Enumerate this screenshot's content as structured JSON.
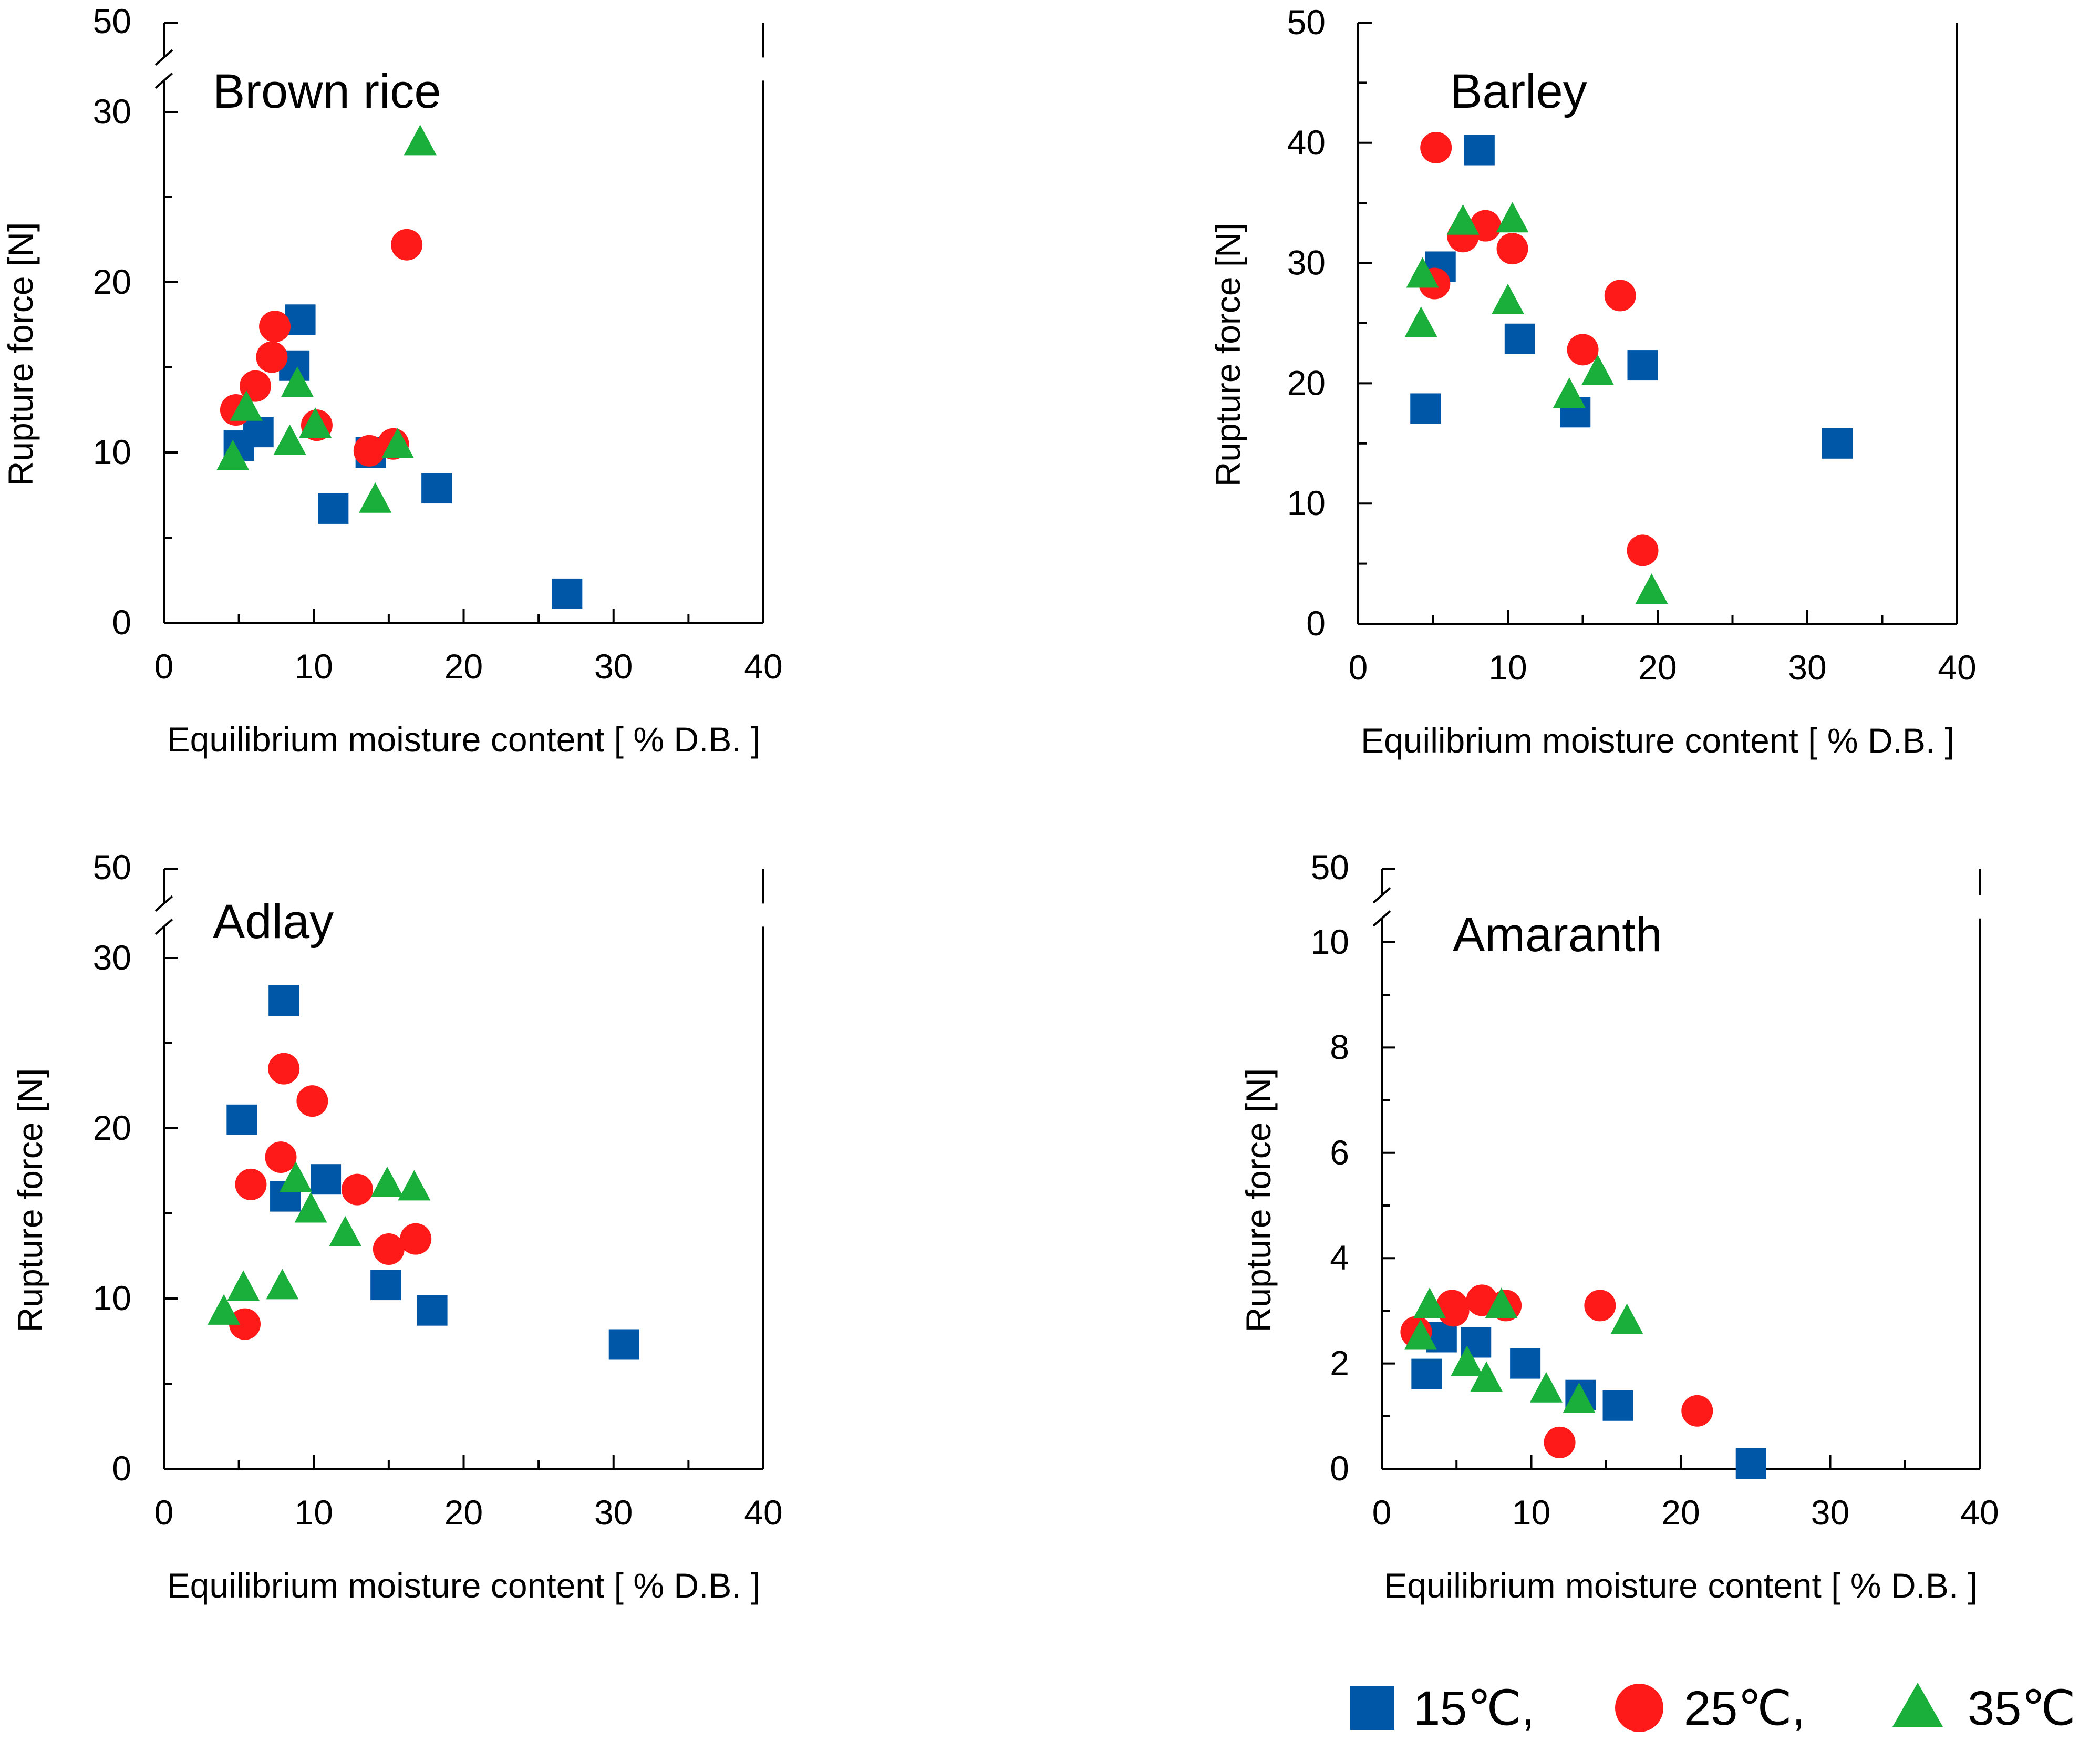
{
  "chart_data": [
    {
      "type": "scatter",
      "title": "Brown rice",
      "xlabel": "Equilibrium moisture content [ % D.B. ]",
      "ylabel": "Rupture force [N]",
      "xlim": [
        0,
        40
      ],
      "ylim": [
        0,
        30
      ],
      "axis_break": {
        "top_label": "50",
        "below": 30
      },
      "xticks": [
        0,
        10,
        20,
        30,
        40
      ],
      "yticks": [
        0,
        10,
        20,
        30
      ],
      "series": [
        {
          "name": "15°C",
          "marker": "square",
          "color": "#0057A8",
          "x": [
            5,
            6.3,
            8.7,
            9.1,
            11.3,
            13.8,
            18.2,
            26.9
          ],
          "y": [
            10.4,
            11.2,
            15.1,
            17.8,
            6.7,
            10.0,
            7.9,
            1.7
          ]
        },
        {
          "name": "25°C",
          "marker": "circle",
          "color": "#FF1A1A",
          "x": [
            4.8,
            6.1,
            7.2,
            7.4,
            10.2,
            13.7,
            15.3,
            16.2
          ],
          "y": [
            12.5,
            13.9,
            15.6,
            17.4,
            11.6,
            10.1,
            10.5,
            22.2
          ]
        },
        {
          "name": "35°C",
          "marker": "triangle",
          "color": "#1AAE3A",
          "x": [
            4.6,
            5.5,
            8.4,
            8.9,
            10.1,
            14.1,
            15.6,
            17.1
          ],
          "y": [
            9.7,
            12.6,
            10.6,
            14.0,
            11.6,
            7.2,
            10.4,
            28.2
          ]
        }
      ]
    },
    {
      "type": "scatter",
      "title": "Barley",
      "xlabel": "Equilibrium moisture content [ % D.B. ]",
      "ylabel": "Rupture force [N]",
      "xlim": [
        0,
        40
      ],
      "ylim": [
        0,
        50
      ],
      "xticks": [
        0,
        10,
        20,
        30,
        40
      ],
      "yticks": [
        0,
        10,
        20,
        30,
        40,
        50
      ],
      "series": [
        {
          "name": "15°C",
          "marker": "square",
          "color": "#0057A8",
          "x": [
            4.5,
            5.5,
            8.1,
            10.8,
            14.5,
            19.0,
            32.0
          ],
          "y": [
            17.9,
            29.7,
            39.4,
            23.7,
            17.6,
            21.5,
            15.0
          ]
        },
        {
          "name": "25°C",
          "marker": "circle",
          "color": "#FF1A1A",
          "x": [
            5.1,
            5.2,
            7.0,
            8.5,
            10.3,
            15.0,
            17.5,
            19.0
          ],
          "y": [
            28.3,
            39.6,
            32.2,
            33.1,
            31.2,
            22.8,
            27.3,
            6.1
          ]
        },
        {
          "name": "35°C",
          "marker": "triangle",
          "color": "#1AAE3A",
          "x": [
            4.2,
            4.3,
            7.0,
            10.0,
            10.3,
            14.1,
            16.0,
            19.6
          ],
          "y": [
            24.9,
            29.0,
            33.4,
            26.8,
            33.6,
            19.0,
            20.9,
            2.7
          ]
        }
      ]
    },
    {
      "type": "scatter",
      "title": "Adlay",
      "xlabel": "Equilibrium moisture content [ % D.B. ]",
      "ylabel": "Rupture force [N]",
      "xlim": [
        0,
        40
      ],
      "ylim": [
        0,
        30
      ],
      "axis_break": {
        "top_label": "50",
        "below": 30
      },
      "xticks": [
        0,
        10,
        20,
        30,
        40
      ],
      "yticks": [
        0,
        10,
        20,
        30
      ],
      "series": [
        {
          "name": "15°C",
          "marker": "square",
          "color": "#0057A8",
          "x": [
            5.2,
            8.0,
            8.1,
            10.8,
            14.8,
            17.9,
            30.7
          ],
          "y": [
            20.5,
            27.5,
            16.0,
            17.0,
            10.8,
            9.3,
            7.3
          ]
        },
        {
          "name": "25°C",
          "marker": "circle",
          "color": "#FF1A1A",
          "x": [
            5.4,
            5.8,
            7.8,
            8.0,
            9.9,
            12.9,
            15.0,
            16.8
          ],
          "y": [
            8.5,
            16.7,
            18.3,
            23.5,
            21.6,
            16.4,
            12.9,
            13.5
          ]
        },
        {
          "name": "35°C",
          "marker": "triangle",
          "color": "#1AAE3A",
          "x": [
            4.0,
            5.3,
            7.9,
            8.8,
            9.8,
            12.1,
            14.9,
            16.7
          ],
          "y": [
            9.2,
            10.6,
            10.7,
            17.0,
            15.2,
            13.8,
            16.7,
            16.5
          ]
        }
      ]
    },
    {
      "type": "scatter",
      "title": "Amaranth",
      "xlabel": "Equilibrium moisture content [ % D.B. ]",
      "ylabel": "Rupture force [N]",
      "xlim": [
        0,
        40
      ],
      "ylim": [
        0,
        10
      ],
      "axis_break": {
        "top_label": "50",
        "below": 10
      },
      "xticks": [
        0,
        10,
        20,
        30,
        40
      ],
      "yticks": [
        0,
        2,
        4,
        6,
        8,
        10
      ],
      "series": [
        {
          "name": "15°C",
          "marker": "square",
          "color": "#0057A8",
          "x": [
            3.0,
            4.0,
            6.3,
            9.6,
            13.3,
            15.8,
            24.7
          ],
          "y": [
            1.8,
            2.5,
            2.4,
            2.0,
            1.4,
            1.2,
            0.1
          ]
        },
        {
          "name": "25°C",
          "marker": "circle",
          "color": "#FF1A1A",
          "x": [
            2.3,
            4.7,
            4.8,
            6.7,
            8.3,
            11.9,
            14.6,
            21.1
          ],
          "y": [
            2.6,
            3.1,
            3.0,
            3.2,
            3.1,
            0.5,
            3.1,
            1.1
          ]
        },
        {
          "name": "35°C",
          "marker": "triangle",
          "color": "#1AAE3A",
          "x": [
            2.6,
            3.2,
            5.7,
            7.0,
            8.0,
            11.0,
            13.2,
            16.4
          ],
          "y": [
            2.5,
            3.1,
            2.0,
            1.7,
            3.1,
            1.5,
            1.3,
            2.8
          ]
        }
      ]
    }
  ],
  "legend": {
    "items": [
      {
        "label": "15℃,",
        "marker": "square",
        "color": "#0057A8"
      },
      {
        "label": "25℃,",
        "marker": "circle",
        "color": "#FF1A1A"
      },
      {
        "label": "35℃",
        "marker": "triangle",
        "color": "#1AAE3A"
      }
    ]
  }
}
